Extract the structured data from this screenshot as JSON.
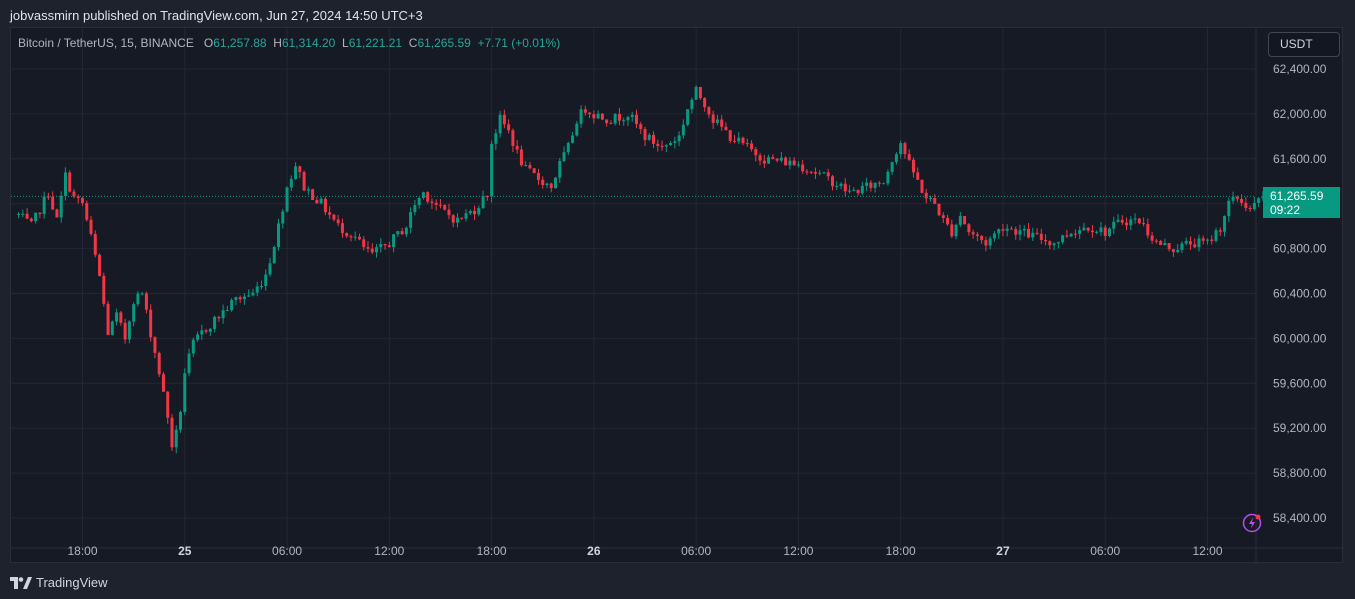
{
  "header": {
    "publish_line": "jobvassmirn published on TradingView.com, Jun 27, 2024 14:50 UTC+3"
  },
  "legend": {
    "symbol": "Bitcoin / TetherUS, 15, BINANCE",
    "o_label": "O",
    "o_value": "61,257.88",
    "h_label": "H",
    "h_value": "61,314.20",
    "l_label": "L",
    "l_value": "61,221.21",
    "c_label": "C",
    "c_value": "61,265.59",
    "change": "+7.71 (+0.01%)"
  },
  "toolbar": {
    "currency_label": "USDT"
  },
  "last_price": {
    "price": "61,265.59",
    "countdown": "09:22"
  },
  "footer": {
    "brand": "TradingView"
  },
  "colors": {
    "up": "#089981",
    "down": "#f23645",
    "background": "#161a25",
    "grid": "#242733",
    "axis_text": "#b2b5be"
  },
  "icons": {
    "alert": "lightning-bolt-icon",
    "brand": "tradingview-logo-icon"
  },
  "chart_data": {
    "type": "candlestick",
    "title": "",
    "xlabel": "",
    "ylabel": "",
    "ylim": [
      58300,
      62600
    ],
    "grid": true,
    "y_ticks": [
      "58,400.00",
      "58,800.00",
      "59,200.00",
      "59,600.00",
      "60,000.00",
      "60,400.00",
      "60,800.00",
      "61,200.00",
      "61,600.00",
      "62,000.00",
      "62,400.00"
    ],
    "y_tick_values": [
      58400,
      58800,
      59200,
      59600,
      60000,
      60400,
      60800,
      61200,
      61600,
      62000,
      62400
    ],
    "x_ticks": [
      {
        "label": "18:00",
        "bold": false,
        "hour": 18
      },
      {
        "label": "25",
        "bold": true,
        "hour": 24
      },
      {
        "label": "06:00",
        "bold": false,
        "hour": 30
      },
      {
        "label": "12:00",
        "bold": false,
        "hour": 36
      },
      {
        "label": "18:00",
        "bold": false,
        "hour": 42
      },
      {
        "label": "26",
        "bold": true,
        "hour": 48
      },
      {
        "label": "06:00",
        "bold": false,
        "hour": 54
      },
      {
        "label": "12:00",
        "bold": false,
        "hour": 60
      },
      {
        "label": "18:00",
        "bold": false,
        "hour": 66
      },
      {
        "label": "27",
        "bold": true,
        "hour": 72
      },
      {
        "label": "06:00",
        "bold": false,
        "hour": 78
      },
      {
        "label": "12:00",
        "bold": false,
        "hour": 84
      }
    ],
    "x_range_hours": [
      14.25,
      88.0
    ],
    "start_hour": 14.25,
    "interval_minutes": 15,
    "last_price": 61265.59,
    "close_path": [
      [
        14.25,
        61100
      ],
      [
        15.0,
        61000
      ],
      [
        16.0,
        61300
      ],
      [
        16.5,
        61050
      ],
      [
        17.0,
        61450
      ],
      [
        17.5,
        61250
      ],
      [
        18.0,
        61200
      ],
      [
        18.5,
        60900
      ],
      [
        19.0,
        60550
      ],
      [
        19.5,
        60050
      ],
      [
        20.0,
        60200
      ],
      [
        20.5,
        60000
      ],
      [
        21.0,
        60350
      ],
      [
        21.5,
        60400
      ],
      [
        22.0,
        60050
      ],
      [
        22.5,
        59700
      ],
      [
        23.0,
        59300
      ],
      [
        23.3,
        59000
      ],
      [
        23.7,
        59300
      ],
      [
        24.0,
        59700
      ],
      [
        24.5,
        59950
      ],
      [
        25.0,
        60050
      ],
      [
        26.0,
        60200
      ],
      [
        27.0,
        60350
      ],
      [
        28.0,
        60400
      ],
      [
        28.7,
        60550
      ],
      [
        29.0,
        60700
      ],
      [
        29.5,
        61000
      ],
      [
        30.0,
        61350
      ],
      [
        30.5,
        61550
      ],
      [
        31.0,
        61350
      ],
      [
        32.0,
        61200
      ],
      [
        33.0,
        61000
      ],
      [
        34.0,
        60900
      ],
      [
        34.5,
        60800
      ],
      [
        35.0,
        60750
      ],
      [
        36.0,
        60850
      ],
      [
        37.0,
        61000
      ],
      [
        37.5,
        61200
      ],
      [
        38.0,
        61300
      ],
      [
        39.0,
        61150
      ],
      [
        40.0,
        61050
      ],
      [
        41.0,
        61150
      ],
      [
        41.8,
        61300
      ],
      [
        42.0,
        61750
      ],
      [
        42.5,
        61950
      ],
      [
        43.0,
        61850
      ],
      [
        43.5,
        61650
      ],
      [
        44.0,
        61500
      ],
      [
        45.0,
        61400
      ],
      [
        45.5,
        61350
      ],
      [
        46.0,
        61550
      ],
      [
        46.5,
        61700
      ],
      [
        47.0,
        61950
      ],
      [
        47.5,
        62050
      ],
      [
        48.0,
        62000
      ],
      [
        49.0,
        61950
      ],
      [
        50.0,
        62000
      ],
      [
        51.0,
        61800
      ],
      [
        52.0,
        61700
      ],
      [
        53.0,
        61800
      ],
      [
        53.5,
        62050
      ],
      [
        54.0,
        62200
      ],
      [
        54.5,
        62100
      ],
      [
        55.0,
        61950
      ],
      [
        56.0,
        61800
      ],
      [
        57.0,
        61700
      ],
      [
        58.0,
        61600
      ],
      [
        59.0,
        61580
      ],
      [
        60.0,
        61550
      ],
      [
        61.0,
        61480
      ],
      [
        62.0,
        61400
      ],
      [
        63.0,
        61300
      ],
      [
        64.0,
        61350
      ],
      [
        65.0,
        61400
      ],
      [
        65.5,
        61600
      ],
      [
        66.0,
        61750
      ],
      [
        66.5,
        61550
      ],
      [
        67.0,
        61400
      ],
      [
        67.5,
        61250
      ],
      [
        68.0,
        61200
      ],
      [
        68.5,
        61050
      ],
      [
        69.0,
        60950
      ],
      [
        69.5,
        61100
      ],
      [
        70.0,
        60950
      ],
      [
        71.0,
        60850
      ],
      [
        72.0,
        61000
      ],
      [
        73.0,
        60950
      ],
      [
        74.0,
        60900
      ],
      [
        75.0,
        60850
      ],
      [
        76.0,
        60950
      ],
      [
        77.0,
        61000
      ],
      [
        78.0,
        60950
      ],
      [
        79.0,
        61050
      ],
      [
        80.0,
        61050
      ],
      [
        81.0,
        60850
      ],
      [
        82.0,
        60800
      ],
      [
        83.0,
        60850
      ],
      [
        84.0,
        60850
      ],
      [
        84.8,
        61000
      ],
      [
        85.2,
        61200
      ],
      [
        85.8,
        61250
      ],
      [
        86.5,
        61150
      ],
      [
        87.3,
        61265.59
      ]
    ]
  }
}
